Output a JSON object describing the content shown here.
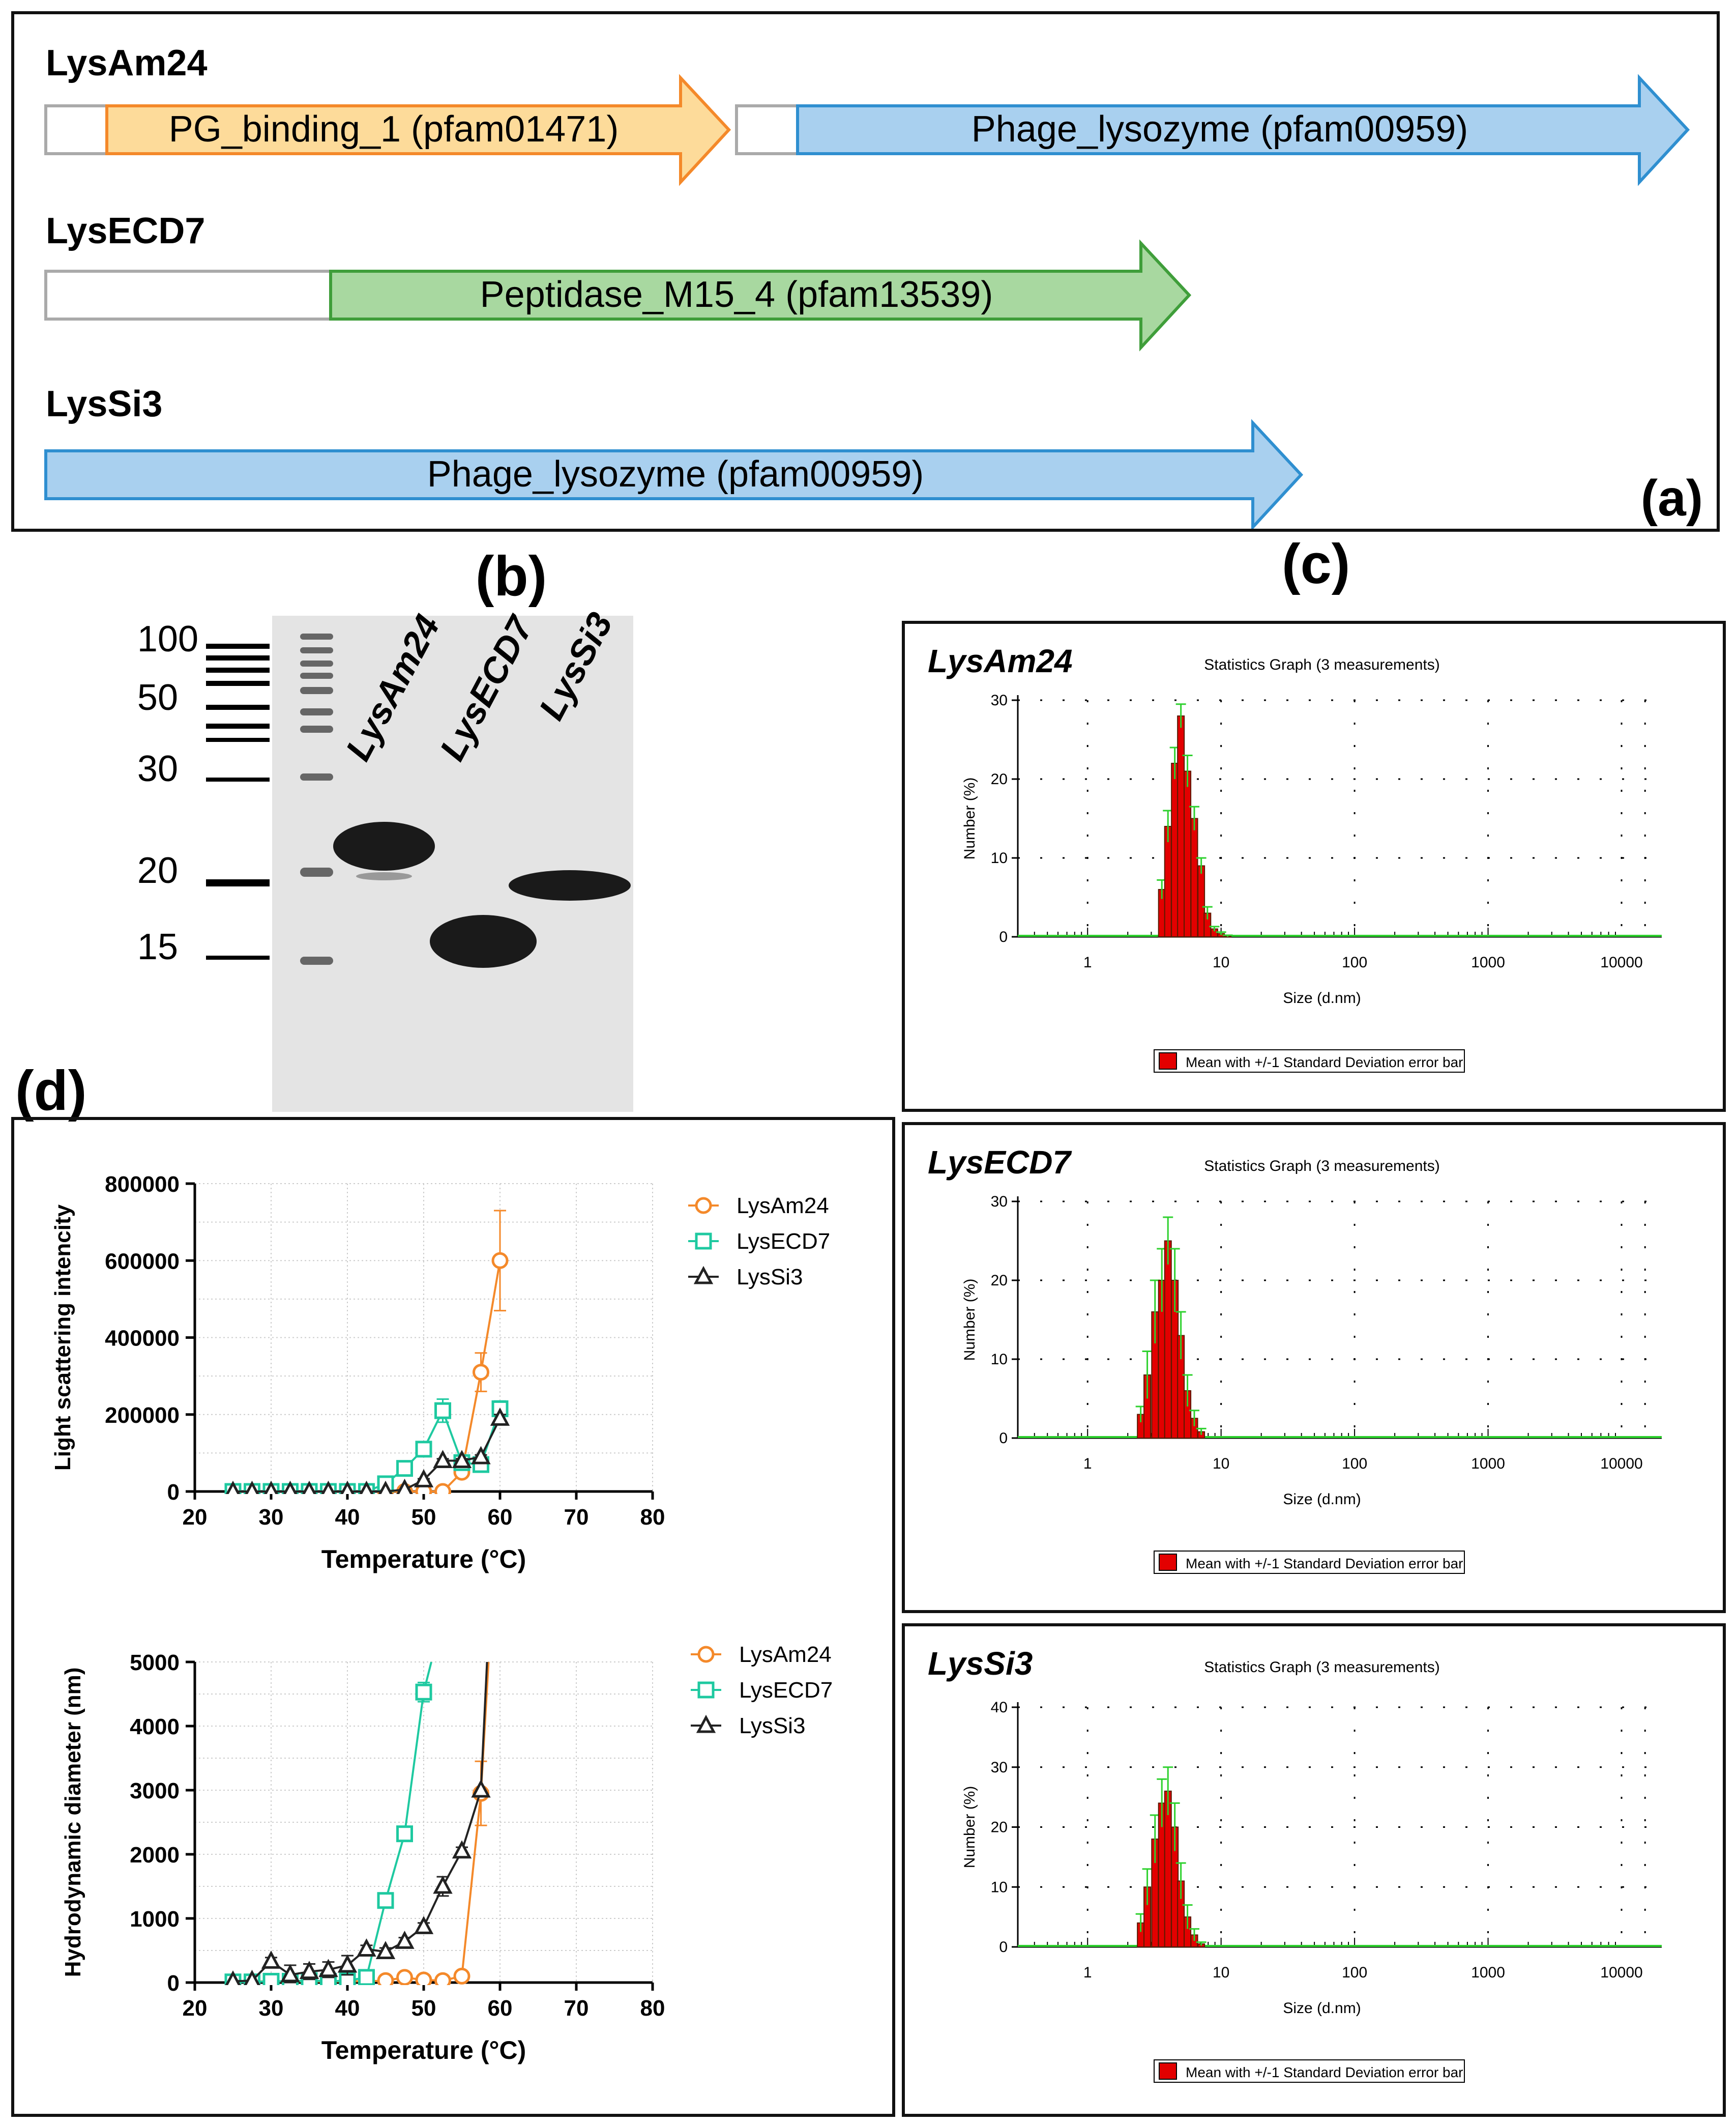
{
  "panel_labels": {
    "a": "(a)",
    "b": "(b)",
    "c": "(c)",
    "d": "(d)"
  },
  "domains": {
    "proteins": [
      {
        "name": "LysAm24",
        "segments": [
          {
            "label": "",
            "kind": "linker"
          },
          {
            "label": "PG_binding_1 (pfam01471)",
            "kind": "arrow",
            "color": "#fddb9a",
            "stroke": "#f4892a"
          },
          {
            "label": "",
            "kind": "linker"
          },
          {
            "label": "Phage_lysozyme (pfam00959)",
            "kind": "arrow",
            "color": "#a9d0ef",
            "stroke": "#2f8fd0"
          }
        ]
      },
      {
        "name": "LysECD7",
        "segments": [
          {
            "label": "",
            "kind": "linker"
          },
          {
            "label": "Peptidase_M15_4 (pfam13539)",
            "kind": "arrow",
            "color": "#a8d8a0",
            "stroke": "#3f9e3a"
          }
        ]
      },
      {
        "name": "LysSi3",
        "segments": [
          {
            "label": "Phage_lysozyme (pfam00959)",
            "kind": "arrow",
            "color": "#a9d0ef",
            "stroke": "#2f8fd0"
          }
        ]
      }
    ]
  },
  "gel": {
    "markers": [
      "100",
      "50",
      "30",
      "20",
      "15"
    ],
    "lanes": [
      "LysAm24",
      "LysECD7",
      "LysSi3"
    ]
  },
  "dls": [
    {
      "protein": "LysAm24",
      "title": "Statistics Graph (3 measurements)",
      "ylabel": "Number (%)",
      "xlabel": "Size (d.nm)",
      "legend": "Mean with +/-1 Standard Deviation error bar",
      "yticks": [
        "0",
        "10",
        "20",
        "30"
      ],
      "xticks": [
        "1",
        "10",
        "100",
        "1000",
        "10000"
      ]
    },
    {
      "protein": "LysECD7",
      "title": "Statistics Graph (3 measurements)",
      "ylabel": "Number (%)",
      "xlabel": "Size (d.nm)",
      "legend": "Mean with +/-1 Standard Deviation error bar",
      "yticks": [
        "0",
        "10",
        "20",
        "30"
      ],
      "xticks": [
        "1",
        "10",
        "100",
        "1000",
        "10000"
      ]
    },
    {
      "protein": "LysSi3",
      "title": "Statistics Graph (3 measurements)",
      "ylabel": "Number (%)",
      "xlabel": "Size (d.nm)",
      "legend": "Mean with +/-1 Standard Deviation error bar",
      "yticks": [
        "0",
        "10",
        "20",
        "30",
        "40"
      ],
      "xticks": [
        "1",
        "10",
        "100",
        "1000",
        "10000"
      ]
    }
  ],
  "chart_data": [
    {
      "type": "bar",
      "protein": "LysAm24",
      "log_x": true,
      "xlim": [
        0.3,
        20000
      ],
      "ylim": [
        0,
        30
      ],
      "x": [
        3.6,
        4.0,
        4.5,
        5.0,
        5.6,
        6.3,
        7.1,
        7.9,
        8.9,
        10.0,
        11.2
      ],
      "values": [
        6,
        14,
        22,
        28,
        21,
        15,
        9,
        3,
        1,
        0.4,
        0.1
      ],
      "errors": [
        1.2,
        2,
        2,
        1.5,
        2,
        1.5,
        1,
        0.8,
        0.3,
        0.2,
        0.1
      ]
    },
    {
      "type": "bar",
      "protein": "LysECD7",
      "log_x": true,
      "xlim": [
        0.3,
        20000
      ],
      "ylim": [
        0,
        30
      ],
      "x": [
        2.5,
        2.8,
        3.2,
        3.6,
        4.0,
        4.5,
        5.0,
        5.6,
        6.3,
        7.1
      ],
      "values": [
        3,
        8,
        16,
        20,
        25,
        20,
        13,
        6,
        2.5,
        0.8
      ],
      "errors": [
        1,
        3,
        4,
        4,
        3,
        4,
        3,
        2,
        1,
        0.4
      ]
    },
    {
      "type": "bar",
      "protein": "LysSi3",
      "log_x": true,
      "xlim": [
        0.3,
        20000
      ],
      "ylim": [
        0,
        40
      ],
      "x": [
        2.5,
        2.8,
        3.2,
        3.6,
        4.0,
        4.5,
        5.0,
        5.6,
        6.3,
        7.1
      ],
      "values": [
        4,
        10,
        18,
        24,
        26,
        20,
        11,
        5,
        2,
        0.5
      ],
      "errors": [
        1.5,
        3,
        4,
        4,
        4,
        4,
        3,
        2,
        1,
        0.3
      ]
    },
    {
      "type": "line",
      "xlabel": "Temperature (°C)",
      "ylabel": "Light scattering intencity",
      "xlim": [
        20,
        80
      ],
      "ylim": [
        0,
        800000
      ],
      "xticks": [
        "20",
        "30",
        "40",
        "50",
        "60",
        "70",
        "80"
      ],
      "yticks": [
        "0",
        "200000",
        "400000",
        "600000",
        "800000"
      ],
      "series": [
        {
          "name": "LysAm24",
          "color": "#f4892a",
          "marker": "circle",
          "x": [
            25,
            27.5,
            30,
            32.5,
            35,
            37.5,
            40,
            42.5,
            45,
            47.5,
            50,
            52.5,
            55,
            57.5,
            60
          ],
          "y": [
            0,
            0,
            0,
            0,
            0,
            0,
            0,
            0,
            0,
            0,
            0,
            0,
            50000,
            310000,
            600000
          ],
          "err": [
            0,
            0,
            0,
            0,
            0,
            0,
            0,
            0,
            0,
            0,
            0,
            0,
            10000,
            50000,
            130000
          ]
        },
        {
          "name": "LysECD7",
          "color": "#1ec9a0",
          "marker": "square",
          "x": [
            25,
            27.5,
            30,
            32.5,
            35,
            37.5,
            40,
            42.5,
            45,
            47.5,
            50,
            52.5,
            55,
            57.5,
            60
          ],
          "y": [
            0,
            0,
            0,
            0,
            0,
            0,
            0,
            0,
            20000,
            60000,
            110000,
            210000,
            75000,
            70000,
            215000
          ],
          "err": [
            0,
            0,
            0,
            0,
            0,
            0,
            0,
            0,
            0,
            5000,
            5000,
            30000,
            5000,
            5000,
            20000
          ]
        },
        {
          "name": "LysSi3",
          "color": "#222222",
          "marker": "triangle",
          "x": [
            25,
            27.5,
            30,
            32.5,
            35,
            37.5,
            40,
            42.5,
            45,
            47.5,
            50,
            52.5,
            55,
            57.5,
            60
          ],
          "y": [
            0,
            0,
            0,
            0,
            0,
            0,
            0,
            0,
            0,
            5000,
            30000,
            80000,
            80000,
            90000,
            190000
          ],
          "err": [
            0,
            0,
            0,
            0,
            0,
            0,
            0,
            0,
            0,
            0,
            3000,
            5000,
            5000,
            5000,
            10000
          ]
        }
      ]
    },
    {
      "type": "line",
      "xlabel": "Temperature (°C)",
      "ylabel": "Hydrodynamic diameter (nm)",
      "xlim": [
        20,
        80
      ],
      "ylim": [
        0,
        5000
      ],
      "xticks": [
        "20",
        "30",
        "40",
        "50",
        "60",
        "70",
        "80"
      ],
      "yticks": [
        "0",
        "1000",
        "2000",
        "3000",
        "4000",
        "5000"
      ],
      "series": [
        {
          "name": "LysAm24",
          "color": "#f4892a",
          "marker": "circle",
          "x": [
            25,
            27.5,
            30,
            32.5,
            35,
            37.5,
            40,
            42.5,
            45,
            47.5,
            50,
            52.5,
            55,
            57.5,
            58.5
          ],
          "y": [
            10,
            15,
            20,
            15,
            20,
            15,
            20,
            20,
            30,
            80,
            40,
            30,
            100,
            2950,
            5000
          ],
          "err": [
            0,
            0,
            0,
            0,
            0,
            0,
            0,
            0,
            0,
            0,
            0,
            0,
            0,
            500,
            0
          ]
        },
        {
          "name": "LysECD7",
          "color": "#1ec9a0",
          "marker": "square",
          "x": [
            25,
            27.5,
            30,
            32.5,
            35,
            37.5,
            40,
            42.5,
            45,
            47.5,
            50,
            51
          ],
          "y": [
            10,
            10,
            20,
            20,
            30,
            20,
            30,
            80,
            1280,
            2320,
            4530,
            5000
          ],
          "err": [
            0,
            0,
            0,
            0,
            0,
            0,
            0,
            0,
            0,
            0,
            150,
            0
          ]
        },
        {
          "name": "LysSi3",
          "color": "#222222",
          "marker": "triangle",
          "x": [
            25,
            27.5,
            30,
            32.5,
            35,
            37.5,
            40,
            42.5,
            45,
            47.5,
            50,
            52.5,
            55,
            57.5,
            58.3
          ],
          "y": [
            20,
            30,
            330,
            120,
            170,
            200,
            270,
            520,
            480,
            640,
            870,
            1500,
            2050,
            3000,
            5000
          ],
          "err": [
            0,
            0,
            60,
            150,
            120,
            120,
            150,
            60,
            60,
            60,
            60,
            150,
            60,
            0,
            0
          ]
        }
      ]
    }
  ]
}
